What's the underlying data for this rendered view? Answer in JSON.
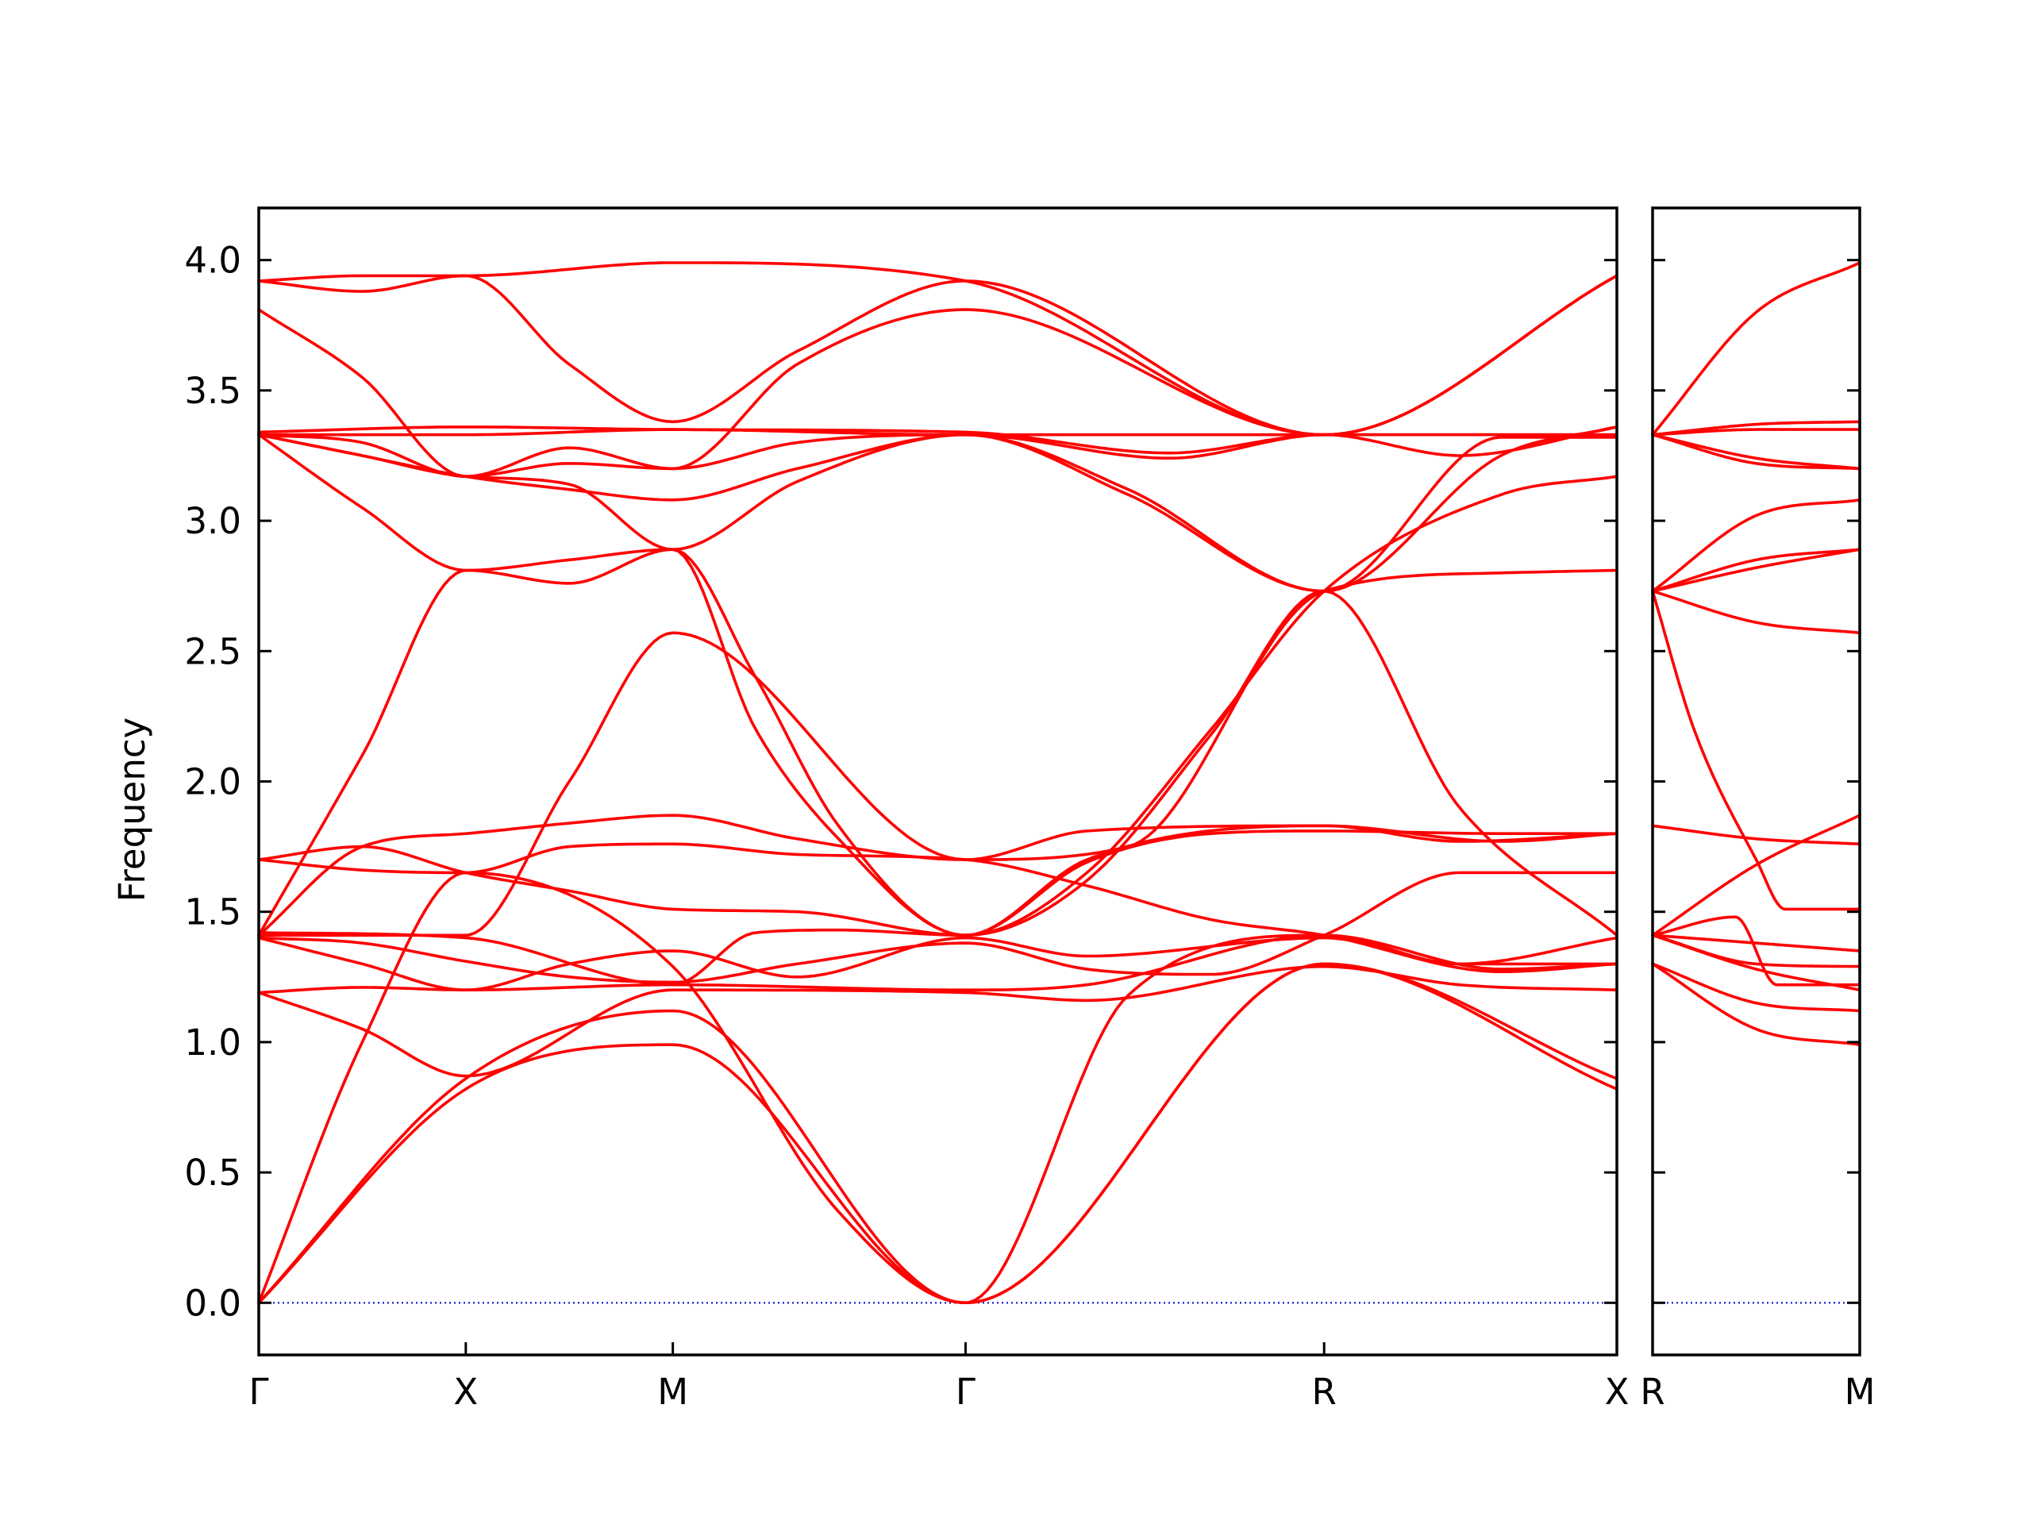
{
  "chart_data": {
    "type": "line",
    "title": "",
    "ylabel": "Frequency",
    "xlabel": "",
    "ylim": [
      -0.2,
      4.2
    ],
    "yticks": [
      0.0,
      0.5,
      1.0,
      1.5,
      2.0,
      2.5,
      3.0,
      3.5,
      4.0
    ],
    "ytick_labels": [
      "0.0",
      "0.5",
      "1.0",
      "1.5",
      "2.0",
      "2.5",
      "3.0",
      "3.5",
      "4.0"
    ],
    "grid": false,
    "legend": "none",
    "colors": {
      "bands": "#ff0000",
      "zero_line": "#0000cc",
      "axes": "#000000"
    },
    "panels": [
      {
        "name": "panel-main",
        "high_symmetry_points": [
          {
            "label": "Γ",
            "x": 0.0
          },
          {
            "label": "X",
            "x": 0.5
          },
          {
            "label": "M",
            "x": 1.0
          },
          {
            "label": "Γ",
            "x": 1.707
          },
          {
            "label": "R",
            "x": 2.573
          },
          {
            "label": "X",
            "x": 3.28
          }
        ],
        "xlim": [
          0.0,
          3.28
        ],
        "bands": [
          {
            "x": [
              0,
              0.5,
              1.0,
              1.707,
              2.573,
              3.28
            ],
            "y": [
              0.0,
              0.82,
              0.99,
              0.0,
              1.3,
              0.82
            ]
          },
          {
            "x": [
              0,
              0.5,
              1.0,
              1.707,
              2.573,
              3.28
            ],
            "y": [
              0.0,
              0.86,
              1.12,
              0.0,
              1.3,
              0.86
            ]
          },
          {
            "x": [
              0,
              0.25,
              0.5,
              1.0,
              1.4,
              1.707,
              2.1,
              2.573,
              2.9,
              3.28
            ],
            "y": [
              0.0,
              1.0,
              1.65,
              1.29,
              0.35,
              0.0,
              1.18,
              1.41,
              1.3,
              1.3
            ]
          },
          {
            "x": [
              0,
              0.25,
              0.5,
              1.0,
              1.707,
              2.0,
              2.573,
              2.9,
              3.28
            ],
            "y": [
              1.19,
              1.05,
              0.87,
              1.2,
              1.19,
              1.16,
              1.29,
              1.22,
              1.2
            ]
          },
          {
            "x": [
              0,
              0.25,
              0.5,
              1.0,
              1.707,
              2.0,
              2.573,
              3.0,
              3.28
            ],
            "y": [
              1.19,
              1.21,
              1.2,
              1.22,
              1.2,
              1.22,
              1.41,
              1.28,
              1.3
            ]
          },
          {
            "x": [
              0,
              0.25,
              0.5,
              0.75,
              1.0,
              1.3,
              1.707,
              2.0,
              2.573,
              2.9,
              3.28
            ],
            "y": [
              1.4,
              1.3,
              1.2,
              1.3,
              1.35,
              1.25,
              1.4,
              1.33,
              1.4,
              1.3,
              1.4
            ]
          },
          {
            "x": [
              0,
              0.25,
              0.5,
              0.75,
              1.0,
              1.3,
              1.707,
              2.0,
              2.3,
              2.573,
              2.9,
              3.28
            ],
            "y": [
              1.4,
              1.38,
              1.31,
              1.25,
              1.23,
              1.3,
              1.38,
              1.28,
              1.26,
              1.41,
              1.65,
              1.65
            ]
          },
          {
            "x": [
              0,
              0.5,
              1.0,
              1.2,
              1.4,
              1.707,
              2.0,
              2.573,
              2.9,
              3.28
            ],
            "y": [
              1.42,
              1.4,
              1.22,
              1.42,
              1.43,
              1.41,
              1.7,
              1.83,
              1.77,
              1.8
            ]
          },
          {
            "x": [
              0,
              0.25,
              0.5,
              0.75,
              1.0,
              1.3,
              1.707,
              2.0,
              2.3,
              2.573,
              3.0,
              3.28
            ],
            "y": [
              1.7,
              1.75,
              1.65,
              1.58,
              1.51,
              1.5,
              1.41,
              1.69,
              1.8,
              1.81,
              1.8,
              1.8
            ]
          },
          {
            "x": [
              0,
              0.25,
              0.5,
              0.75,
              1.0,
              1.3,
              1.707,
              2.0,
              2.3,
              2.573,
              3.0,
              3.28
            ],
            "y": [
              1.7,
              1.66,
              1.65,
              1.75,
              1.76,
              1.72,
              1.7,
              1.6,
              1.47,
              1.41,
              1.27,
              1.3
            ]
          },
          {
            "x": [
              0,
              0.25,
              0.5,
              0.75,
              1.0,
              1.3,
              1.707,
              2.0,
              2.573,
              3.0,
              3.28
            ],
            "y": [
              1.41,
              1.75,
              1.8,
              1.84,
              1.87,
              1.78,
              1.7,
              1.81,
              1.83,
              1.77,
              1.8
            ]
          },
          {
            "x": [
              0,
              0.25,
              0.5,
              0.75,
              1.0,
              1.2,
              1.4,
              1.707,
              2.0,
              2.3,
              2.573,
              3.0,
              3.28
            ],
            "y": [
              1.41,
              2.1,
              2.81,
              2.76,
              2.89,
              2.4,
              1.83,
              1.41,
              1.65,
              2.2,
              2.73,
              3.1,
              3.17
            ]
          },
          {
            "x": [
              0,
              0.25,
              0.5,
              0.75,
              1.0,
              1.2,
              1.4,
              1.707,
              2.0,
              2.3,
              2.573,
              2.9,
              3.28
            ],
            "y": [
              3.33,
              3.05,
              2.81,
              2.85,
              2.89,
              2.2,
              1.78,
              1.41,
              1.62,
              2.18,
              2.73,
              1.9,
              1.41
            ]
          },
          {
            "x": [
              0,
              0.5,
              0.75,
              1.0,
              1.707,
              2.1,
              2.573,
              3.0,
              3.28
            ],
            "y": [
              1.41,
              1.41,
              2.0,
              2.57,
              1.7,
              1.75,
              2.73,
              2.8,
              2.81
            ]
          },
          {
            "x": [
              0,
              0.25,
              0.5,
              0.75,
              1.0,
              1.3,
              1.707,
              2.1,
              2.573,
              3.0,
              3.28
            ],
            "y": [
              3.33,
              3.25,
              3.17,
              3.12,
              3.08,
              3.2,
              3.33,
              3.1,
              2.73,
              3.32,
              3.32
            ]
          },
          {
            "x": [
              0,
              0.25,
              0.5,
              0.75,
              1.0,
              1.3,
              1.707,
              2.1,
              2.573,
              3.0,
              3.28
            ],
            "y": [
              3.33,
              3.25,
              3.17,
              3.14,
              2.89,
              3.15,
              3.33,
              3.12,
              2.73,
              3.25,
              3.36
            ]
          },
          {
            "x": [
              0,
              0.5,
              1.0,
              1.707,
              2.573,
              3.28
            ],
            "y": [
              3.33,
              3.33,
              3.35,
              3.33,
              3.33,
              3.33
            ]
          },
          {
            "x": [
              0,
              0.5,
              1.0,
              1.707,
              2.2,
              2.573,
              3.28
            ],
            "y": [
              3.34,
              3.36,
              3.35,
              3.34,
              3.26,
              3.33,
              3.33
            ]
          },
          {
            "x": [
              0,
              0.25,
              0.5,
              0.75,
              1.0,
              1.3,
              1.707,
              2.2,
              2.573,
              2.9,
              3.28
            ],
            "y": [
              3.33,
              3.3,
              3.17,
              3.28,
              3.2,
              3.3,
              3.33,
              3.24,
              3.33,
              3.25,
              3.36
            ]
          },
          {
            "x": [
              0,
              0.25,
              0.5,
              0.75,
              1.0,
              1.3,
              1.707,
              2.573,
              3.28
            ],
            "y": [
              3.81,
              3.55,
              3.17,
              3.22,
              3.2,
              3.6,
              3.81,
              3.33,
              3.94
            ]
          },
          {
            "x": [
              0,
              0.25,
              0.5,
              0.75,
              1.0,
              1.3,
              1.707,
              2.573,
              3.28
            ],
            "y": [
              3.92,
              3.88,
              3.94,
              3.6,
              3.38,
              3.65,
              3.92,
              3.33,
              3.94
            ]
          },
          {
            "x": [
              0,
              0.25,
              0.5,
              1.0,
              1.707,
              2.573,
              3.28
            ],
            "y": [
              3.92,
              3.94,
              3.94,
              3.99,
              3.92,
              3.33,
              3.94
            ]
          }
        ]
      },
      {
        "name": "panel-right",
        "high_symmetry_points": [
          {
            "label": "R",
            "x": 0.0
          },
          {
            "label": "M",
            "x": 0.5
          }
        ],
        "xlim": [
          0.0,
          0.5
        ],
        "bands": [
          {
            "x": [
              0,
              0.25,
              0.5
            ],
            "y": [
              1.3,
              1.05,
              0.99
            ]
          },
          {
            "x": [
              0,
              0.25,
              0.5
            ],
            "y": [
              1.3,
              1.15,
              1.12
            ]
          },
          {
            "x": [
              0,
              0.25,
              0.5
            ],
            "y": [
              1.41,
              1.28,
              1.2
            ]
          },
          {
            "x": [
              0,
              0.25,
              0.5
            ],
            "y": [
              1.41,
              1.3,
              1.29
            ]
          },
          {
            "x": [
              0,
              0.25,
              0.5
            ],
            "y": [
              1.41,
              1.38,
              1.35
            ]
          },
          {
            "x": [
              0,
              0.2,
              0.3,
              0.5
            ],
            "y": [
              1.41,
              1.48,
              1.22,
              1.22
            ]
          },
          {
            "x": [
              0,
              0.25,
              0.5
            ],
            "y": [
              1.41,
              1.68,
              1.87
            ]
          },
          {
            "x": [
              0,
              0.25,
              0.5
            ],
            "y": [
              1.83,
              1.78,
              1.76
            ]
          },
          {
            "x": [
              0,
              0.1,
              0.25,
              0.32,
              0.5
            ],
            "y": [
              2.73,
              2.2,
              1.7,
              1.51,
              1.51
            ]
          },
          {
            "x": [
              0,
              0.25,
              0.5
            ],
            "y": [
              2.73,
              2.61,
              2.57
            ]
          },
          {
            "x": [
              0,
              0.25,
              0.5
            ],
            "y": [
              2.73,
              2.85,
              2.89
            ]
          },
          {
            "x": [
              0,
              0.25,
              0.5
            ],
            "y": [
              2.73,
              2.82,
              2.89
            ]
          },
          {
            "x": [
              0,
              0.25,
              0.5
            ],
            "y": [
              2.73,
              3.02,
              3.08
            ]
          },
          {
            "x": [
              0,
              0.25,
              0.5
            ],
            "y": [
              3.33,
              3.22,
              3.2
            ]
          },
          {
            "x": [
              0,
              0.25,
              0.5
            ],
            "y": [
              3.33,
              3.24,
              3.2
            ]
          },
          {
            "x": [
              0,
              0.25,
              0.5
            ],
            "y": [
              3.33,
              3.35,
              3.35
            ]
          },
          {
            "x": [
              0,
              0.25,
              0.5
            ],
            "y": [
              3.33,
              3.37,
              3.38
            ]
          },
          {
            "x": [
              0,
              0.25,
              0.5
            ],
            "y": [
              3.33,
              3.8,
              3.99
            ]
          }
        ]
      }
    ]
  }
}
